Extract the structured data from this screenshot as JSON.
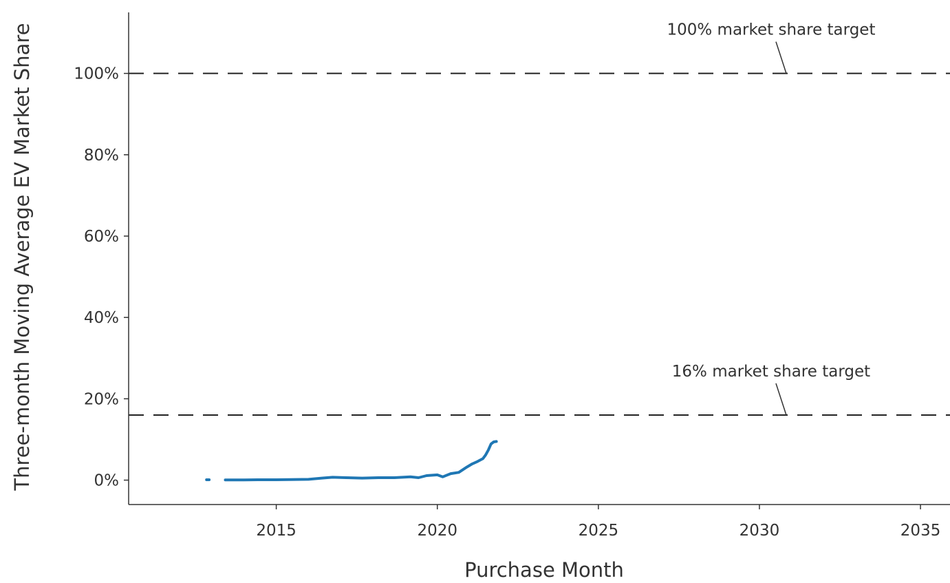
{
  "chart_data": {
    "type": "line",
    "title": "",
    "xlabel": "Purchase Month",
    "ylabel": "Three-month Moving Average EV Market Share",
    "x_tick_labels": [
      "2015",
      "2020",
      "2025",
      "2030",
      "2035"
    ],
    "x_tick_years": [
      2015,
      2020,
      2025,
      2030,
      2035
    ],
    "y_tick_labels": [
      "0%",
      "20%",
      "40%",
      "60%",
      "80%",
      "100%"
    ],
    "y_tick_values": [
      0,
      20,
      40,
      60,
      80,
      100
    ],
    "xlim": [
      "2010-06",
      "2035-12"
    ],
    "ylim": [
      -6,
      115
    ],
    "grid": false,
    "legend": "none",
    "series": [
      {
        "color": "#1f77b4",
        "points": [
          {
            "x": "2012-11",
            "y": 0.1
          },
          {
            "x": "2012-12",
            "y": 0.1
          },
          {
            "x": "2013-06",
            "y": 0.05
          },
          {
            "x": "2013-09",
            "y": 0.05
          },
          {
            "x": "2014-01",
            "y": 0.05
          },
          {
            "x": "2014-06",
            "y": 0.1
          },
          {
            "x": "2015-01",
            "y": 0.1
          },
          {
            "x": "2015-06",
            "y": 0.15
          },
          {
            "x": "2016-01",
            "y": 0.2
          },
          {
            "x": "2016-06",
            "y": 0.5
          },
          {
            "x": "2016-10",
            "y": 0.7
          },
          {
            "x": "2017-03",
            "y": 0.6
          },
          {
            "x": "2017-09",
            "y": 0.5
          },
          {
            "x": "2018-03",
            "y": 0.6
          },
          {
            "x": "2018-09",
            "y": 0.6
          },
          {
            "x": "2019-03",
            "y": 0.8
          },
          {
            "x": "2019-06",
            "y": 0.6
          },
          {
            "x": "2019-09",
            "y": 1.1
          },
          {
            "x": "2020-01",
            "y": 1.3
          },
          {
            "x": "2020-03",
            "y": 0.8
          },
          {
            "x": "2020-06",
            "y": 1.6
          },
          {
            "x": "2020-09",
            "y": 1.9
          },
          {
            "x": "2020-12",
            "y": 3.2
          },
          {
            "x": "2021-02",
            "y": 4.0
          },
          {
            "x": "2021-04",
            "y": 4.6
          },
          {
            "x": "2021-06",
            "y": 5.3
          },
          {
            "x": "2021-07",
            "y": 6.2
          },
          {
            "x": "2021-08",
            "y": 7.4
          },
          {
            "x": "2021-09",
            "y": 8.9
          },
          {
            "x": "2021-10",
            "y": 9.4
          },
          {
            "x": "2021-11",
            "y": 9.5
          }
        ]
      }
    ],
    "reference_lines": [
      {
        "y": 100,
        "label": "100% market share target"
      },
      {
        "y": 16,
        "label": "16% market share target"
      }
    ],
    "annotation_arrow_x": "2030-11"
  }
}
